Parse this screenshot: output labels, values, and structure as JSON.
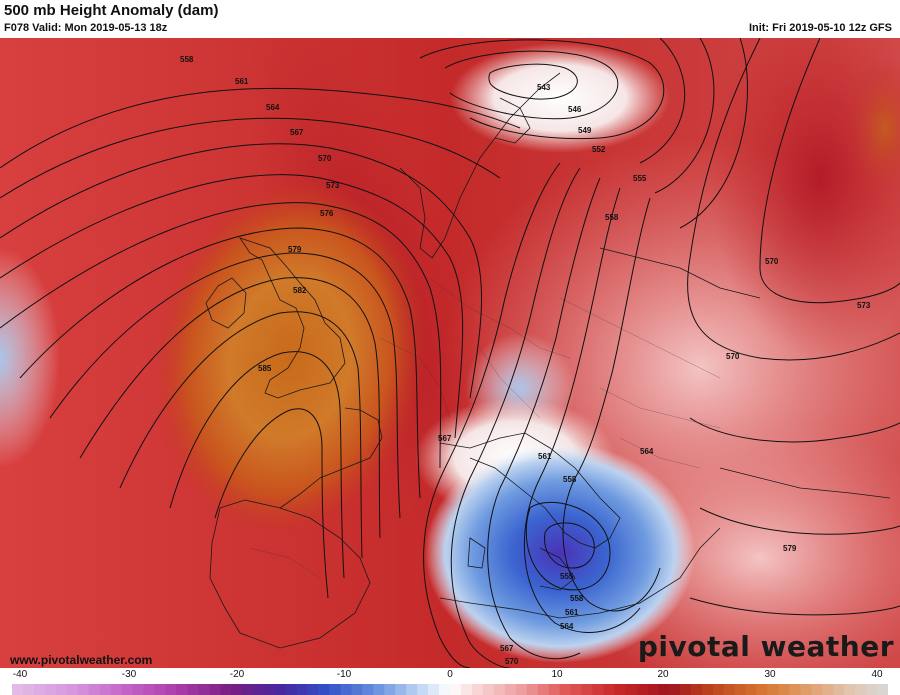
{
  "header": {
    "title": "500 mb Height Anomaly (dam)",
    "valid": "F078 Valid: Mon 2019-05-13 18z",
    "init": "Init: Fri 2019-05-10 12z GFS"
  },
  "footer": {
    "website": "www.pivotalweather.com",
    "brand": "pivotal weather",
    "brand_icon": "pivot-o-icon"
  },
  "colorbar": {
    "ticks": [
      "-40",
      "-30",
      "-20",
      "-10",
      "0",
      "10",
      "20",
      "30",
      "40"
    ],
    "min": -40,
    "max": 40
  },
  "contour_labels": [
    {
      "text": "558"
    },
    {
      "text": "561"
    },
    {
      "text": "564"
    },
    {
      "text": "567"
    },
    {
      "text": "570"
    },
    {
      "text": "573"
    },
    {
      "text": "576"
    },
    {
      "text": "579"
    },
    {
      "text": "582"
    },
    {
      "text": "585"
    },
    {
      "text": "543"
    },
    {
      "text": "546"
    },
    {
      "text": "549"
    },
    {
      "text": "552"
    },
    {
      "text": "555"
    },
    {
      "text": "558"
    },
    {
      "text": "570"
    },
    {
      "text": "573"
    },
    {
      "text": "570"
    },
    {
      "text": "567"
    },
    {
      "text": "561"
    },
    {
      "text": "558"
    },
    {
      "text": "564"
    },
    {
      "text": "555"
    },
    {
      "text": "558"
    },
    {
      "text": "561"
    },
    {
      "text": "564"
    },
    {
      "text": "567"
    },
    {
      "text": "570"
    },
    {
      "text": "579"
    }
  ]
}
